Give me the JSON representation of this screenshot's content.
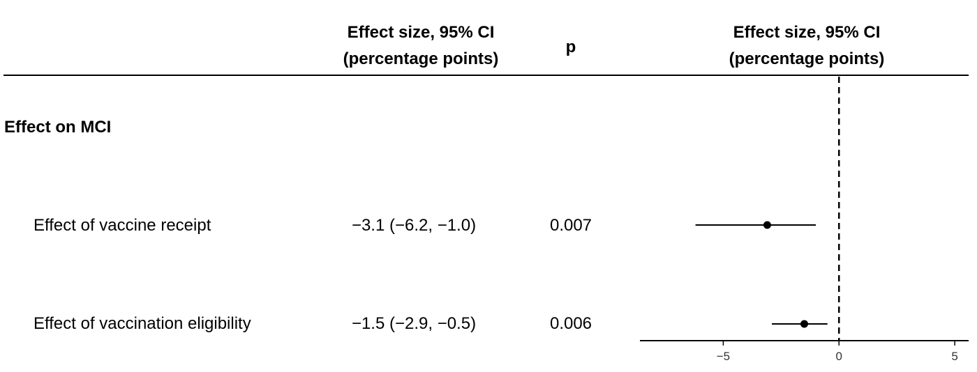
{
  "table": {
    "header_effect_line1": "Effect size, 95% CI",
    "header_effect_line2": "(percentage points)",
    "header_p": "p",
    "section_title": "Effect on MCI",
    "rows": [
      {
        "label": "Effect of vaccine receipt",
        "effect_text": "−3.1 (−6.2, −1.0)",
        "p": "0.007"
      },
      {
        "label": "Effect of vaccination eligibility",
        "effect_text": "−1.5 (−2.9, −0.5)",
        "p": "0.006"
      }
    ]
  },
  "chart_data": {
    "type": "scatter",
    "subtype": "forest",
    "title_line1": "Effect size, 95% CI",
    "title_line2": "(percentage points)",
    "categories": [
      "Effect of vaccine receipt",
      "Effect of vaccination eligibility"
    ],
    "estimates": [
      -3.1,
      -1.5
    ],
    "ci_lower": [
      -6.2,
      -2.9
    ],
    "ci_upper": [
      -1.0,
      -0.5
    ],
    "xlim": [
      -8.6,
      5.6
    ],
    "xticks": [
      -5,
      0,
      5
    ],
    "xtick_labels": [
      "−5",
      "0",
      "5"
    ],
    "reference_line": 0,
    "grid": false
  }
}
